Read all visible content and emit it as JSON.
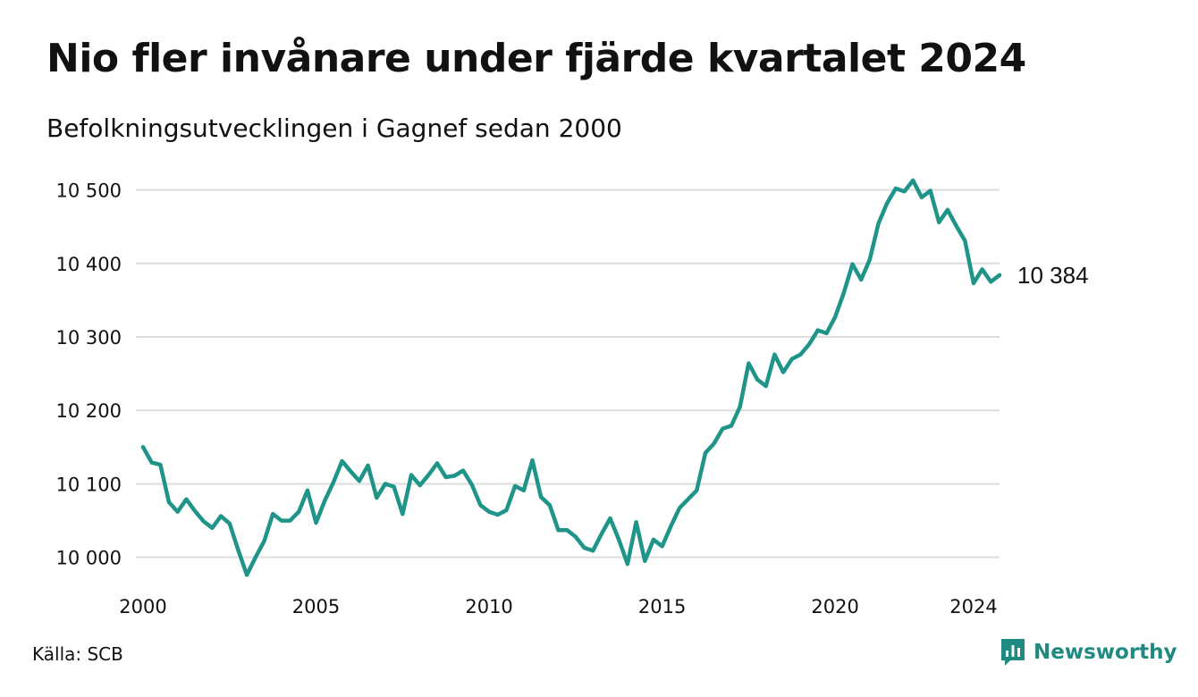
{
  "title": "Nio fler invånare under fjärde kvartalet 2024",
  "subtitle": "Befolkningsutvecklingen i Gagnef sedan 2000",
  "source": "Källa: SCB",
  "brand": "Newsworthy",
  "colors": {
    "line": "#1f9488",
    "grid": "#dddddd",
    "brand": "#1f8a80"
  },
  "chart_data": {
    "type": "line",
    "title": "Nio fler invånare under fjärde kvartalet 2024",
    "subtitle": "Befolkningsutvecklingen i Gagnef sedan 2000",
    "xlabel": "",
    "ylabel": "",
    "xlim": [
      2000,
      2024.75
    ],
    "ylim": [
      9985,
      10525
    ],
    "y_ticks": [
      10000,
      10100,
      10200,
      10300,
      10400,
      10500
    ],
    "y_tick_labels": [
      "10 000",
      "10 100",
      "10 200",
      "10 300",
      "10 400",
      "10 500"
    ],
    "x_ticks": [
      2000,
      2005,
      2010,
      2015,
      2020,
      2024
    ],
    "x_tick_labels": [
      "2000",
      "2005",
      "2010",
      "2015",
      "2020",
      "2024"
    ],
    "grid": true,
    "end_label": "10 384",
    "series": [
      {
        "x": [
          2000.0,
          2000.25,
          2000.5,
          2000.75,
          2001.0,
          2001.25,
          2001.5,
          2001.75,
          2002.0,
          2002.25,
          2002.5,
          2002.75,
          2003.0,
          2003.25,
          2003.5,
          2003.75,
          2004.0,
          2004.25,
          2004.5,
          2004.75,
          2005.0,
          2005.25,
          2005.5,
          2005.75,
          2006.0,
          2006.25,
          2006.5,
          2006.75,
          2007.0,
          2007.25,
          2007.5,
          2007.75,
          2008.0,
          2008.25,
          2008.5,
          2008.75,
          2009.0,
          2009.25,
          2009.5,
          2009.75,
          2010.0,
          2010.25,
          2010.5,
          2010.75,
          2011.0,
          2011.25,
          2011.5,
          2011.75,
          2012.0,
          2012.25,
          2012.5,
          2012.75,
          2013.0,
          2013.25,
          2013.5,
          2013.75,
          2014.0,
          2014.25,
          2014.5,
          2014.75,
          2015.0,
          2015.25,
          2015.5,
          2015.75,
          2016.0,
          2016.25,
          2016.5,
          2016.75,
          2017.0,
          2017.25,
          2017.5,
          2017.75,
          2018.0,
          2018.25,
          2018.5,
          2018.75,
          2019.0,
          2019.25,
          2019.5,
          2019.75,
          2020.0,
          2020.25,
          2020.5,
          2020.75,
          2021.0,
          2021.25,
          2021.5,
          2021.75,
          2022.0,
          2022.25,
          2022.5,
          2022.75,
          2023.0,
          2023.25,
          2023.5,
          2023.75,
          2024.0,
          2024.25,
          2024.5,
          2024.75
        ],
        "y": [
          10150,
          10129,
          10126,
          10075,
          10062,
          10079,
          10063,
          10049,
          10040,
          10056,
          10046,
          10010,
          9976,
          10000,
          10022,
          10059,
          10050,
          10050,
          10062,
          10091,
          10047,
          10077,
          10102,
          10131,
          10117,
          10104,
          10125,
          10081,
          10100,
          10096,
          10059,
          10112,
          10098,
          10112,
          10128,
          10109,
          10111,
          10118,
          10099,
          10071,
          10062,
          10058,
          10064,
          10097,
          10091,
          10132,
          10082,
          10071,
          10037,
          10037,
          10028,
          10013,
          10009,
          10032,
          10053,
          10024,
          9991,
          10048,
          9995,
          10024,
          10015,
          10042,
          10067,
          10079,
          10091,
          10142,
          10155,
          10175,
          10179,
          10205,
          10264,
          10242,
          10233,
          10276,
          10252,
          10270,
          10276,
          10290,
          10309,
          10305,
          10327,
          10360,
          10399,
          10378,
          10405,
          10454,
          10482,
          10502,
          10498,
          10513,
          10490,
          10499,
          10456,
          10473,
          10451,
          10431,
          10373,
          10392,
          10375,
          10384
        ]
      }
    ]
  }
}
